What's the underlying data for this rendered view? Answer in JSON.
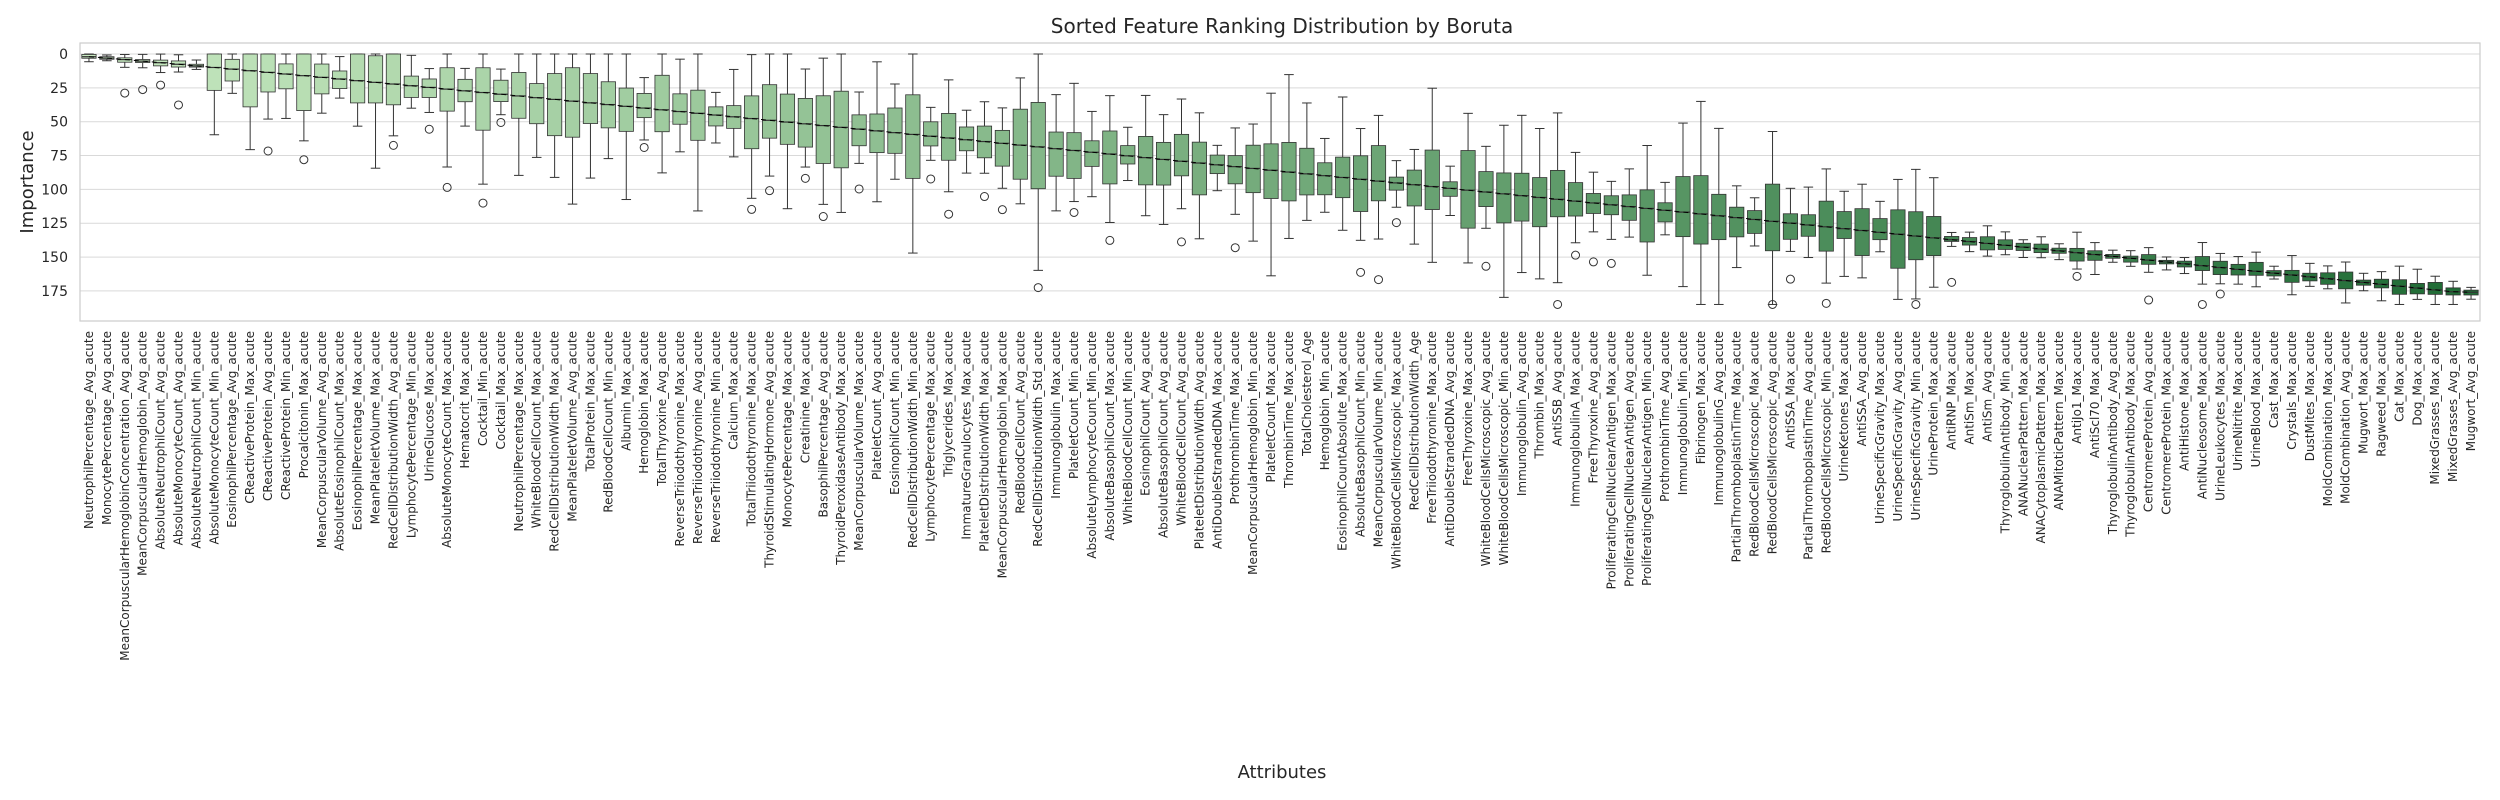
{
  "chart_data": {
    "type": "box",
    "title": "Sorted Feature Ranking Distribution by Boruta",
    "xlabel": "Attributes",
    "ylabel": "Importance",
    "y_axis_inverted": true,
    "ylim": [
      0,
      195
    ],
    "yticks": [
      0,
      25,
      50,
      75,
      100,
      125,
      150,
      175
    ],
    "grid": "horizontal",
    "colors": {
      "light": "#c7e9c0",
      "dark": "#1f6b35",
      "median_line": "#000000",
      "outline": "#333333"
    },
    "attributes": [
      "NeutrophilPercentage_Avg_acute",
      "MonocytePercentage_Avg_acute",
      "MeanCorpuscularHemoglobinConcentration_Avg_acute",
      "MeanCorpuscularHemoglobin_Avg_acute",
      "AbsoluteNeutrophilCount_Avg_acute",
      "AbsoluteMonocyteCount_Avg_acute",
      "AbsoluteNeutrophilCount_Min_acute",
      "AbsoluteMonocyteCount_Min_acute",
      "EosinophilPercentage_Avg_acute",
      "CReactiveProtein_Max_acute",
      "CReactiveProtein_Avg_acute",
      "CReactiveProtein_Min_acute",
      "Procalcitonin_Max_acute",
      "MeanCorpuscularVolume_Avg_acute",
      "AbsoluteEosinophilCount_Max_acute",
      "EosinophilPercentage_Max_acute",
      "MeanPlateletVolume_Max_acute",
      "RedCellDistributionWidth_Avg_acute",
      "LymphocytePercentage_Min_acute",
      "UrineGlucose_Max_acute",
      "AbsoluteMonocyteCount_Max_acute",
      "Hematocrit_Max_acute",
      "Cocktail_Min_acute",
      "Cocktail_Max_acute",
      "NeutrophilPercentage_Max_acute",
      "WhiteBloodCellCount_Max_acute",
      "RedCellDistributionWidth_Max_acute",
      "MeanPlateletVolume_Avg_acute",
      "TotalProtein_Max_acute",
      "RedBloodCellCount_Min_acute",
      "Albumin_Max_acute",
      "Hemoglobin_Max_acute",
      "TotalThyroxine_Avg_acute",
      "ReverseTriiodothyronine_Max_acute",
      "ReverseTriiodothyronine_Avg_acute",
      "ReverseTriiodothyronine_Min_acute",
      "Calcium_Max_acute",
      "TotalTriiodothyronine_Max_acute",
      "ThyroidStimulatingHormone_Avg_acute",
      "MonocytePercentage_Max_acute",
      "Creatinine_Max_acute",
      "BasophilPercentage_Avg_acute",
      "ThyroidPeroxidaseAntibody_Max_acute",
      "MeanCorpuscularVolume_Max_acute",
      "PlateletCount_Avg_acute",
      "EosinophilCount_Min_acute",
      "RedCellDistributionWidth_Min_acute",
      "LymphocytePercentage_Max_acute",
      "Triglycerides_Max_acute",
      "ImmatureGranulocytes_Max_acute",
      "PlateletDistributionWidth_Max_acute",
      "MeanCorpuscularHemoglobin_Max_acute",
      "RedBloodCellCount_Avg_acute",
      "RedCellDistributionWidth_Std_acute",
      "Immunoglobulin_Max_acute",
      "PlateletCount_Min_acute",
      "AbsoluteLymphocyteCount_Min_acute",
      "AbsoluteBasophilCount_Max_acute",
      "WhiteBloodCellCount_Min_acute",
      "EosinophilCount_Avg_acute",
      "AbsoluteBasophilCount_Avg_acute",
      "WhiteBloodCellCount_Avg_acute",
      "PlateletDistributionWidth_Avg_acute",
      "AntiDoubleStrandedDNA_Max_acute",
      "ProthrombinTime_Max_acute",
      "MeanCorpuscularHemoglobin_Min_acute",
      "PlateletCount_Max_acute",
      "ThrombinTime_Max_acute",
      "TotalCholesterol_Age",
      "Hemoglobin_Min_acute",
      "EosinophilCountAbsolute_Max_acute",
      "AbsoluteBasophilCount_Min_acute",
      "MeanCorpuscularVolume_Min_acute",
      "WhiteBloodCellsMicroscopic_Max_acute",
      "RedCellDistributionWidth_Age",
      "FreeTriiodothyronine_Max_acute",
      "AntiDoubleStrandedDNA_Avg_acute",
      "FreeThyroxine_Max_acute",
      "WhiteBloodCellsMicroscopic_Avg_acute",
      "WhiteBloodCellsMicroscopic_Min_acute",
      "Immunoglobulin_Avg_acute",
      "Thrombin_Max_acute",
      "AntiSSB_Avg_acute",
      "ImmunoglobulinA_Max_acute",
      "FreeThyroxine_Avg_acute",
      "ProliferatingCellNuclearAntigen_Max_acute",
      "ProliferatingCellNuclearAntigen_Avg_acute",
      "ProliferatingCellNuclearAntigen_Min_acute",
      "ProthrombinTime_Avg_acute",
      "Immunoglobulin_Min_acute",
      "Fibrinogen_Max_acute",
      "ImmunoglobulinG_Avg_acute",
      "PartialThromboplastinTime_Max_acute",
      "RedBloodCellsMicroscopic_Max_acute",
      "RedBloodCellsMicroscopic_Avg_acute",
      "AntiSSA_Max_acute",
      "PartialThromboplastinTime_Avg_acute",
      "RedBloodCellsMicroscopic_Min_acute",
      "UrineKetones_Max_acute",
      "AntiSSA_Avg_acute",
      "UrineSpecificGravity_Max_acute",
      "UrineSpecificGravity_Avg_acute",
      "UrineSpecificGravity_Min_acute",
      "UrineProtein_Max_acute",
      "AntiRNP_Max_acute",
      "AntiSm_Max_acute",
      "AntiSm_Avg_acute",
      "ThyroglobulinAntibody_Min_acute",
      "ANANuclearPattern_Max_acute",
      "ANACytoplasmicPattern_Max_acute",
      "ANAMitoticPattern_Max_acute",
      "AntiJo1_Max_acute",
      "AntiScl70_Max_acute",
      "ThyroglobulinAntibody_Avg_acute",
      "ThyroglobulinAntibody_Max_acute",
      "CentromereProtein_Avg_acute",
      "CentromereProtein_Max_acute",
      "AntiHistone_Max_acute",
      "AntiNucleosome_Max_acute",
      "UrineLeukocytes_Max_acute",
      "UrineNitrite_Max_acute",
      "UrineBlood_Max_acute",
      "Cast_Max_acute",
      "Crystals_Max_acute",
      "DustMites_Max_acute",
      "MoldCombination_Max_acute",
      "MoldCombination_Avg_acute",
      "Mugwort_Max_acute",
      "Ragweed_Max_acute",
      "Cat_Max_acute",
      "Dog_Max_acute",
      "MixedGrasses_Max_acute",
      "MixedGrasses_Avg_acute",
      "Mugwort_Avg_acute"
    ]
  }
}
